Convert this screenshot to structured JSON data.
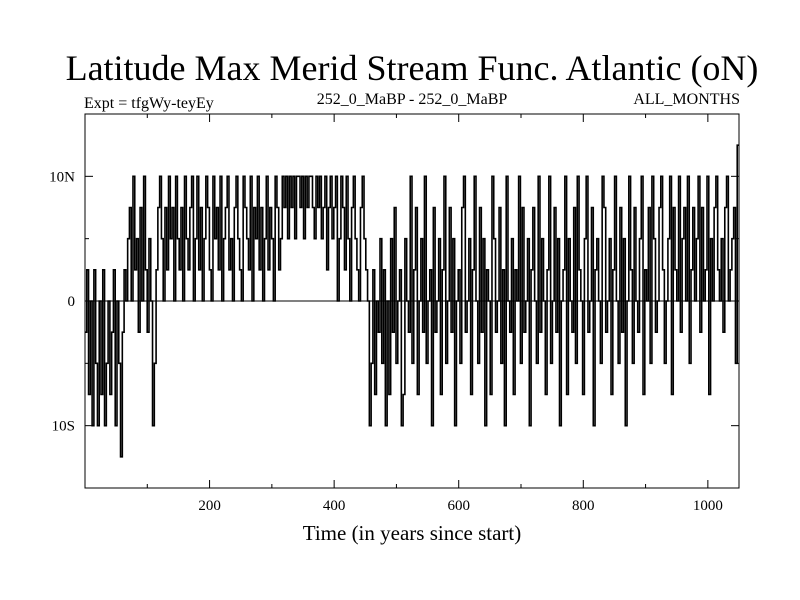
{
  "chart_data": {
    "type": "line",
    "title": "Latitude Max Merid Stream Func. Atlantic (oN)",
    "header_left": "Expt = tfgWy-teyEy",
    "header_center": "252_0_MaBP - 252_0_MaBP",
    "header_right": "ALL_MONTHS",
    "xlabel": "Time (in years since start)",
    "ylabel": "",
    "xlim": [
      0,
      1050
    ],
    "ylim": [
      -15,
      15
    ],
    "x_ticks": [
      {
        "value": 200,
        "label": "200"
      },
      {
        "value": 400,
        "label": "400"
      },
      {
        "value": 600,
        "label": "600"
      },
      {
        "value": 800,
        "label": "800"
      },
      {
        "value": 1000,
        "label": "1000"
      }
    ],
    "y_ticks": [
      {
        "value": 10,
        "label": "10N"
      },
      {
        "value": 0,
        "label": "0"
      },
      {
        "value": -10,
        "label": "10S"
      }
    ],
    "series": [
      {
        "values": [
          -2.5,
          2.5,
          -7.5,
          0,
          -10,
          2.5,
          -5,
          -10,
          0,
          -7.5,
          2.5,
          -10,
          -5,
          0,
          -7.5,
          -2.5,
          2.5,
          -10,
          0,
          -5,
          -12.5,
          -2.5,
          2.5,
          0,
          5,
          7.5,
          0,
          10,
          2.5,
          5,
          -2.5,
          7.5,
          0,
          10,
          2.5,
          -2.5,
          5,
          0,
          -10,
          -5,
          2.5,
          7.5,
          10,
          5,
          0,
          7.5,
          2.5,
          10,
          5,
          7.5,
          0,
          10,
          5,
          2.5,
          7.5,
          0,
          10,
          5,
          2.5,
          7.5,
          10,
          0,
          5,
          10,
          2.5,
          7.5,
          0,
          5,
          10,
          7.5,
          2.5,
          0,
          10,
          5,
          7.5,
          2.5,
          10,
          0,
          5,
          7.5,
          10,
          2.5,
          5,
          0,
          7.5,
          10,
          5,
          2.5,
          0,
          10,
          7.5,
          5,
          2.5,
          10,
          0,
          7.5,
          5,
          10,
          2.5,
          7.5,
          0,
          5,
          10,
          2.5,
          7.5,
          5,
          0,
          10,
          7.5,
          2.5,
          5,
          10,
          7.5,
          10,
          5,
          10,
          7.5,
          10,
          5,
          10,
          10,
          7.5,
          10,
          5,
          10,
          7.5,
          10,
          10,
          7.5,
          5,
          10,
          7.5,
          10,
          5,
          7.5,
          10,
          2.5,
          7.5,
          10,
          5,
          7.5,
          10,
          0,
          5,
          10,
          7.5,
          2.5,
          10,
          5,
          0,
          7.5,
          10,
          5,
          2.5,
          0,
          7.5,
          10,
          5,
          2.5,
          0,
          -10,
          -5,
          2.5,
          -7.5,
          0,
          -2.5,
          5,
          -5,
          2.5,
          -10,
          0,
          -7.5,
          5,
          -2.5,
          7.5,
          -5,
          0,
          2.5,
          -10,
          -7.5,
          5,
          0,
          -2.5,
          10,
          -5,
          2.5,
          7.5,
          -7.5,
          0,
          5,
          -2.5,
          10,
          -5,
          0,
          2.5,
          -10,
          7.5,
          -2.5,
          0,
          5,
          -7.5,
          2.5,
          10,
          -5,
          0,
          7.5,
          -2.5,
          5,
          -10,
          0,
          2.5,
          -5,
          7.5,
          10,
          -2.5,
          0,
          5,
          -7.5,
          2.5,
          10,
          0,
          -5,
          7.5,
          -2.5,
          5,
          -10,
          2.5,
          0,
          -7.5,
          10,
          5,
          -2.5,
          0,
          7.5,
          -5,
          2.5,
          -10,
          10,
          0,
          -2.5,
          5,
          -7.5,
          2.5,
          0,
          10,
          -5,
          7.5,
          -2.5,
          0,
          5,
          -10,
          2.5,
          7.5,
          0,
          -5,
          10,
          -2.5,
          5,
          0,
          -7.5,
          2.5,
          10,
          -5,
          0,
          7.5,
          -2.5,
          5,
          -10,
          0,
          2.5,
          10,
          -7.5,
          5,
          0,
          -2.5,
          7.5,
          -5,
          10,
          2.5,
          0,
          -7.5,
          5,
          10,
          -2.5,
          0,
          7.5,
          -10,
          2.5,
          5,
          0,
          -5,
          10,
          7.5,
          -2.5,
          0,
          5,
          -7.5,
          2.5,
          10,
          0,
          -5,
          7.5,
          -2.5,
          5,
          -10,
          0,
          10,
          2.5,
          -5,
          7.5,
          0,
          -2.5,
          5,
          10,
          -7.5,
          2.5,
          0,
          7.5,
          -5,
          10,
          5,
          -2.5,
          0,
          7.5,
          10,
          2.5,
          -5,
          0,
          5,
          10,
          -7.5,
          7.5,
          2.5,
          0,
          10,
          -2.5,
          5,
          7.5,
          0,
          10,
          -5,
          2.5,
          7.5,
          0,
          5,
          10,
          -2.5,
          7.5,
          0,
          2.5,
          10,
          -7.5,
          5,
          0,
          7.5,
          10,
          2.5,
          0,
          5,
          -2.5,
          7.5,
          10,
          0,
          2.5,
          5,
          7.5,
          -5,
          12.5
        ]
      }
    ],
    "grid": false,
    "legend": "none"
  }
}
